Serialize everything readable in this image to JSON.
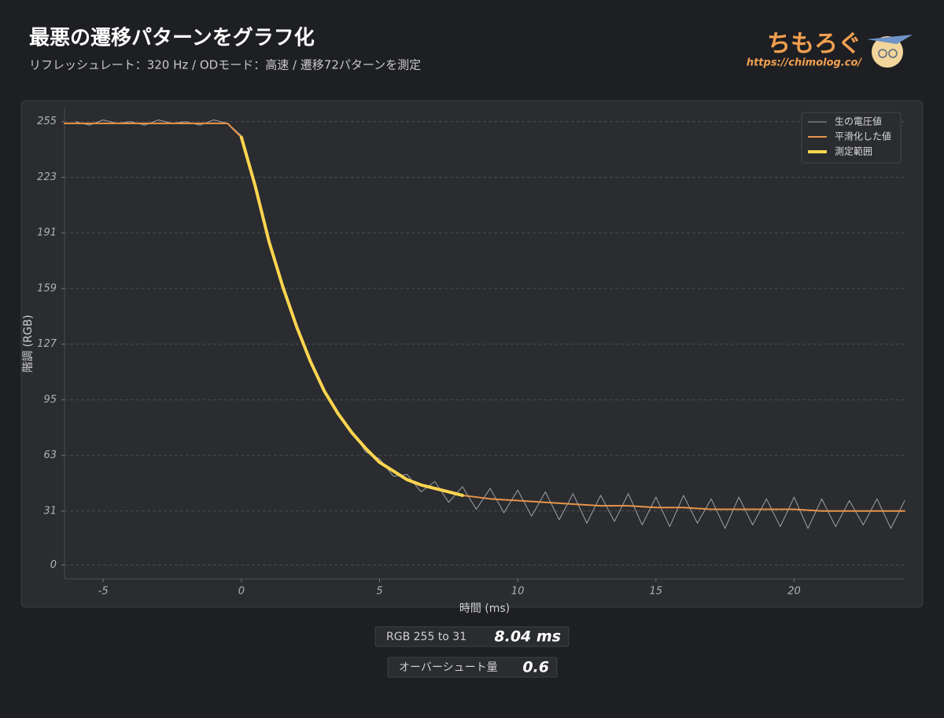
{
  "chart_data": {
    "type": "line",
    "title": "最悪の遷移パターンをグラフ化",
    "subtitle": "リフレッシュレート：320 Hz / ODモード：高速 / 遷移72パターンを測定",
    "x_label": "時間 (ms)",
    "y_label": "階調 (RGB)",
    "xlim": [
      -6.4,
      24
    ],
    "ylim": [
      -8,
      263
    ],
    "xticks": [
      -5,
      0,
      5,
      10,
      15,
      20
    ],
    "yticks": [
      0,
      31,
      63,
      95,
      127,
      159,
      191,
      223,
      255
    ],
    "grid": true,
    "legend": "upper right",
    "series": [
      {
        "name": "生の電圧値",
        "color": "#9ea2a8",
        "width": 1,
        "x": [
          -6,
          -5.5,
          -5,
          -4.5,
          -4,
          -3.5,
          -3,
          -2.5,
          -2,
          -1.5,
          -1,
          -0.5,
          0,
          0.5,
          1,
          1.5,
          2,
          2.5,
          3,
          3.5,
          4,
          4.5,
          5,
          5.5,
          6,
          6.5,
          7,
          7.5,
          8,
          8.5,
          9,
          9.5,
          10,
          10.5,
          11,
          11.5,
          12,
          12.5,
          13,
          13.5,
          14,
          14.5,
          15,
          15.5,
          16,
          16.5,
          17,
          17.5,
          18,
          18.5,
          19,
          19.5,
          20,
          20.5,
          21,
          21.5,
          22,
          22.5,
          23,
          23.5,
          24
        ],
        "values": [
          255,
          253,
          256,
          254,
          255,
          253,
          256,
          254,
          255,
          253,
          256,
          254,
          247,
          217,
          187,
          159,
          138,
          116,
          101,
          86,
          77,
          65,
          61,
          51,
          52,
          42,
          48,
          36,
          45,
          32,
          44,
          30,
          43,
          28,
          42,
          26,
          41,
          24,
          40,
          25,
          41,
          23,
          39,
          22,
          40,
          24,
          38,
          21,
          39,
          23,
          38,
          22,
          39,
          21,
          38,
          22,
          37,
          23,
          38,
          21,
          37
        ]
      },
      {
        "name": "平滑化した値",
        "color": "#e8944a",
        "width": 2,
        "x": [
          -6.4,
          -5,
          -4,
          -3,
          -2,
          -1,
          -0.5,
          0,
          0.5,
          1,
          1.5,
          2,
          2.5,
          3,
          3.5,
          4,
          4.5,
          5,
          5.5,
          6,
          6.5,
          7,
          7.5,
          8,
          9,
          10,
          11,
          12,
          13,
          14,
          15,
          16,
          17,
          18,
          19,
          20,
          21,
          22,
          23,
          24
        ],
        "values": [
          254,
          254,
          254,
          254,
          254,
          254,
          254,
          246,
          218,
          186,
          160,
          137,
          117,
          100,
          87,
          76,
          67,
          59,
          54,
          49,
          46,
          44,
          42,
          40,
          38,
          37,
          36,
          35,
          34,
          34,
          33,
          33,
          32,
          32,
          32,
          32,
          31,
          31,
          31,
          31
        ]
      },
      {
        "name": "測定範囲",
        "color": "#ffd54f",
        "width": 4,
        "x": [
          0,
          0.5,
          1,
          1.5,
          2,
          2.5,
          3,
          3.5,
          4,
          4.5,
          5,
          5.5,
          6,
          6.5,
          7,
          7.5,
          8
        ],
        "values": [
          246,
          218,
          186,
          160,
          137,
          117,
          100,
          87,
          76,
          67,
          59,
          54,
          49,
          46,
          44,
          42,
          40
        ]
      }
    ]
  },
  "logo": {
    "text": "ちもろぐ",
    "url": "https://chimolog.co/"
  },
  "stats": [
    {
      "label": "RGB 255 to 31",
      "value": "8.04 ms"
    },
    {
      "label": "オーバーシュート量",
      "value": "0.6"
    }
  ]
}
